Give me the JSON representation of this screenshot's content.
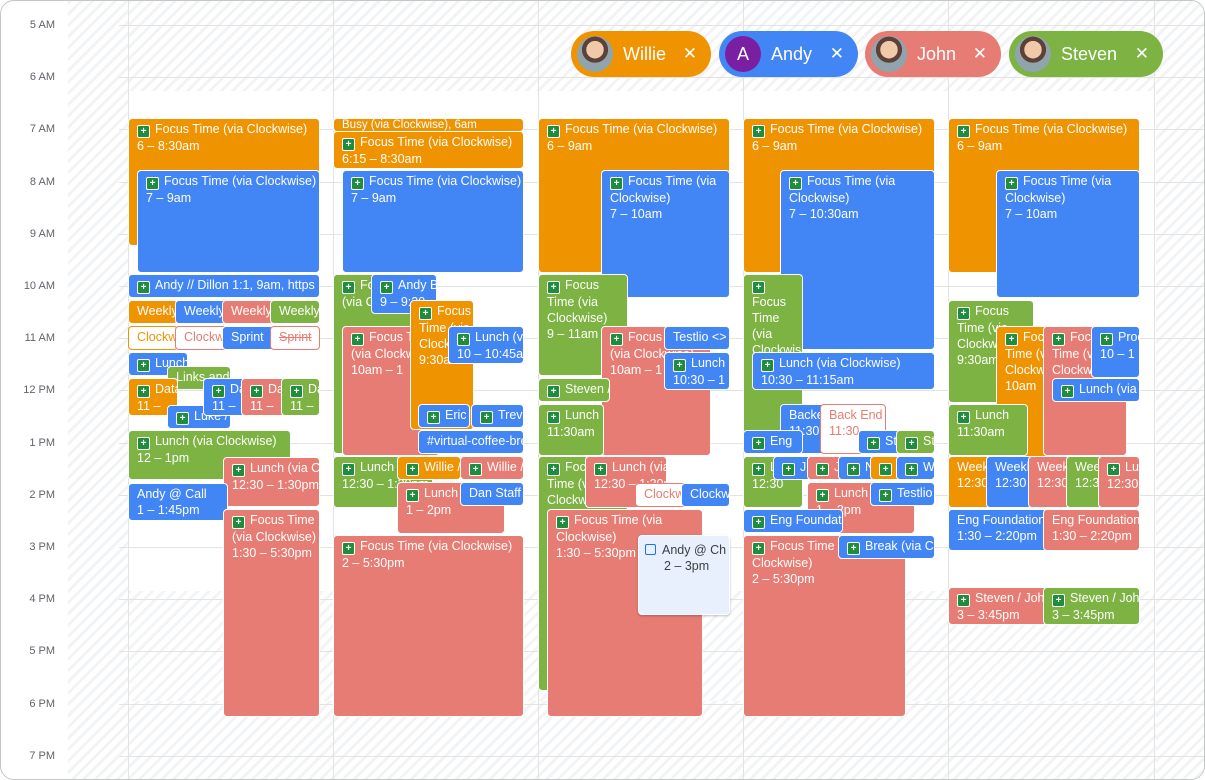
{
  "colors": {
    "orange": "#f09300",
    "blue": "#4285f4",
    "salmon": "#e67c73",
    "green": "#7cb342",
    "tangerine": "#f4511e"
  },
  "time_labels": [
    "5 AM",
    "6 AM",
    "7 AM",
    "8 AM",
    "9 AM",
    "10 AM",
    "11 AM",
    "12 PM",
    "1 PM",
    "2 PM",
    "3 PM",
    "4 PM",
    "5 PM",
    "6 PM",
    "7 PM"
  ],
  "people": [
    {
      "name": "Willie",
      "avatar": "photo",
      "color": "#f09300"
    },
    {
      "name": "Andy",
      "avatar": "A",
      "color": "#4285f4"
    },
    {
      "name": "John",
      "avatar": "photo",
      "color": "#e67c73"
    },
    {
      "name": "Steven",
      "avatar": "photo",
      "color": "#7cb342"
    }
  ],
  "remove_icon": "close-icon",
  "events": {
    "c1": [
      {
        "t": "Focus Time (via Clockwise)",
        "s": "6 – 8:30am",
        "ci": true,
        "c": "orange"
      },
      {
        "t": "Focus Time (via Clockwise)",
        "s": "7 – 9am",
        "ci": true,
        "c": "blue",
        "wrap": true
      },
      {
        "t": "Andy // Dillon 1:1, 9am, https",
        "ci": true,
        "c": "blue"
      },
      {
        "t": "Weekly",
        "c": "orange"
      },
      {
        "t": "Weekly",
        "c": "blue"
      },
      {
        "t": "Weekly",
        "c": "salmon"
      },
      {
        "t": "Weekly",
        "c": "green"
      },
      {
        "t": "Clockwise",
        "c": "orange",
        "outline": true
      },
      {
        "t": "Clockwise",
        "c": "salmon",
        "outline": true
      },
      {
        "t": "Sprint",
        "c": "blue"
      },
      {
        "t": "Sprint",
        "c": "salmon",
        "outline": true,
        "strike": true
      },
      {
        "t": "Lunch",
        "ci": true,
        "c": "blue"
      },
      {
        "t": "Links and",
        "c": "green"
      },
      {
        "t": "Data T",
        "s": "11 –",
        "ci": true,
        "c": "orange"
      },
      {
        "t": "Luke /",
        "ci": true,
        "c": "blue"
      },
      {
        "t": "Da",
        "s": "11 –",
        "ci": true,
        "c": "blue"
      },
      {
        "t": "Da",
        "s": "11 –",
        "ci": true,
        "c": "salmon"
      },
      {
        "t": "Da",
        "s": "11 –",
        "ci": true,
        "c": "green"
      },
      {
        "t": "Lunch (via Clockwise)",
        "s": "12 – 1pm",
        "ci": true,
        "c": "green"
      },
      {
        "t": "Lunch (via Clockwise)",
        "s": "12:30 – 1:30pm",
        "ci": true,
        "c": "salmon"
      },
      {
        "t": "Andy @ Call",
        "s": "1 – 1:45pm",
        "c": "blue"
      },
      {
        "t": "Focus Time (via Clockwise)",
        "s": "1:30 – 5:30pm",
        "ci": true,
        "c": "salmon",
        "wrap": true
      }
    ],
    "c2": [
      {
        "t": "Busy (via Clockwise), 6am",
        "c": "orange"
      },
      {
        "t": "Focus Time (via Clockwise)",
        "s": "6:15 – 8:30am",
        "ci": true,
        "c": "orange"
      },
      {
        "t": "Focus Time (via Clockwise)",
        "s": "7 – 9am",
        "ci": true,
        "c": "blue",
        "wrap": true
      },
      {
        "t": "Focus Time (via Clockwise)",
        "ci": true,
        "c": "green",
        "wrap": true
      },
      {
        "t": "Andy B",
        "s": "9 – 9:30",
        "ci": true,
        "c": "blue"
      },
      {
        "t": "Focus Time (via Clockwise)",
        "s": "10am – 1",
        "ci": true,
        "c": "salmon",
        "wrap": true
      },
      {
        "t": "Focus Time (via Clockwise)",
        "s": "9:30am –",
        "ci": true,
        "c": "orange",
        "wrap": true
      },
      {
        "t": "Lunch (via Clockwise)",
        "s": "10 – 10:45am",
        "ci": true,
        "c": "blue"
      },
      {
        "t": "Eric",
        "ci": true,
        "c": "blue"
      },
      {
        "t": "Trevor",
        "ci": true,
        "c": "blue"
      },
      {
        "t": "#virtual-coffee-break",
        "c": "blue"
      },
      {
        "t": "Lunch (via Clockwise)",
        "s": "12:30 – 1:30pm",
        "ci": true,
        "c": "green"
      },
      {
        "t": "Willie / Dan",
        "ci": true,
        "c": "orange"
      },
      {
        "t": "Willie / Dan",
        "ci": true,
        "c": "salmon"
      },
      {
        "t": "Lunch (via Clockwise)",
        "s": "1 – 2pm",
        "ci": true,
        "c": "salmon"
      },
      {
        "t": "Dan Staff",
        "c": "blue"
      },
      {
        "t": "Focus Time (via Clockwise)",
        "s": "2 – 5:30pm",
        "ci": true,
        "c": "salmon"
      }
    ],
    "c3": [
      {
        "t": "Focus Time (via Clockwise)",
        "s": "6 – 9am",
        "ci": true,
        "c": "orange"
      },
      {
        "t": "Focus Time (via Clockwise)",
        "s": "7 – 10am",
        "ci": true,
        "c": "blue",
        "wrap": true
      },
      {
        "t": "Focus Time (via Clockwise)",
        "s": "9 – 11am",
        "ci": true,
        "c": "green",
        "wrap": true
      },
      {
        "t": "Focus Time (via Clockwise)",
        "s": "10am – 1",
        "ci": true,
        "c": "salmon",
        "wrap": true
      },
      {
        "t": "Testlio <> Clockwise",
        "c": "blue"
      },
      {
        "t": "Lunch (via Clockwise)",
        "s": "10:30 – 1",
        "ci": true,
        "c": "blue"
      },
      {
        "t": "Steven / John",
        "ci": true,
        "c": "green"
      },
      {
        "t": "Lunch (via Clockwise)",
        "s": "11:30am",
        "ci": true,
        "c": "green"
      },
      {
        "t": "Focus Time (via Clockwise)",
        "ci": true,
        "c": "green",
        "wrap": true
      },
      {
        "t": "Lunch (via Clockwise)",
        "s": "12:30 – 1:30pm",
        "ci": true,
        "c": "salmon"
      },
      {
        "t": "Clockwise",
        "c": "salmon",
        "outline": true
      },
      {
        "t": "Clockwise",
        "c": "blue"
      },
      {
        "t": "Focus Time (via Clockwise)",
        "s": "1:30 – 5:30pm",
        "ci": true,
        "c": "salmon",
        "wrap": true
      },
      {
        "t": "Andy @ Ch",
        "s": "2 – 3pm",
        "popup": true
      }
    ],
    "c4": [
      {
        "t": "Focus Time (via Clockwise)",
        "s": "6 – 9am",
        "ci": true,
        "c": "orange"
      },
      {
        "t": "Focus Time (via Clockwise)",
        "s": "7 – 10:30am",
        "ci": true,
        "c": "blue",
        "wrap": true
      },
      {
        "t": "Focus Time (via Clockwise)",
        "ci": true,
        "c": "green",
        "wrap": true
      },
      {
        "t": "Lunch (via Clockwise)",
        "s": "10:30 – 11:15am",
        "ci": true,
        "c": "blue"
      },
      {
        "t": "Backend",
        "s": "11:30",
        "c": "blue"
      },
      {
        "t": "Back End",
        "s": "11:30",
        "c": "salmon",
        "outline": true
      },
      {
        "t": "Eng",
        "ci": true,
        "c": "blue"
      },
      {
        "t": "St",
        "ci": true,
        "c": "blue"
      },
      {
        "t": "St",
        "ci": true,
        "c": "green"
      },
      {
        "t": "L",
        "s": "12:30",
        "ci": true,
        "c": "green"
      },
      {
        "t": "J",
        "ci": true,
        "c": "blue"
      },
      {
        "t": "J",
        "ci": true,
        "c": "salmon"
      },
      {
        "t": "N",
        "ci": true,
        "c": "blue"
      },
      {
        "t": "W",
        "ci": true,
        "c": "orange"
      },
      {
        "t": "W",
        "ci": true,
        "c": "blue"
      },
      {
        "t": "Lunch (via Clockwise)",
        "s": "1 – 2pm",
        "ci": true,
        "c": "salmon"
      },
      {
        "t": "Testlio - Clockwise",
        "ci": true,
        "c": "blue",
        "hatched": true
      },
      {
        "t": "Eng Foundations",
        "ci": true,
        "c": "blue"
      },
      {
        "t": "Focus Time (via Clockwise)",
        "s": "2 – 5:30pm",
        "ci": true,
        "c": "salmon",
        "wrap": true
      },
      {
        "t": "Break (via Clockwise)",
        "ci": true,
        "c": "blue"
      }
    ],
    "c5": [
      {
        "t": "Focus Time (via Clockwise)",
        "s": "6 – 9am",
        "ci": true,
        "c": "orange"
      },
      {
        "t": "Focus Time (via Clockwise)",
        "s": "7 – 10am",
        "ci": true,
        "c": "blue",
        "wrap": true
      },
      {
        "t": "Focus Time (via Clockwise)",
        "s": "9:30am",
        "ci": true,
        "c": "green",
        "wrap": true
      },
      {
        "t": "Focus Time (via Clockwise)",
        "s": "10am",
        "ci": true,
        "c": "orange",
        "wrap": true
      },
      {
        "t": "Focus Time (via Clockwise)",
        "ci": true,
        "c": "salmon",
        "wrap": true
      },
      {
        "t": "Product",
        "s": "10 – 1",
        "ci": true,
        "c": "blue"
      },
      {
        "t": "Lunch (via Clockwise)",
        "ci": true,
        "c": "blue"
      },
      {
        "t": "Lunch",
        "s": "11:30am",
        "ci": true,
        "c": "green"
      },
      {
        "t": "Weekly",
        "s": "12:30",
        "c": "orange"
      },
      {
        "t": "Weekly",
        "s": "12:30",
        "c": "blue"
      },
      {
        "t": "Weekly",
        "s": "12:30",
        "c": "salmon"
      },
      {
        "t": "Weekly",
        "s": "12:30",
        "c": "green"
      },
      {
        "t": "Lunch",
        "s": "12:30",
        "ci": true,
        "c": "salmon"
      },
      {
        "t": "Eng Foundations",
        "s": "1:30 – 2:20pm",
        "c": "blue"
      },
      {
        "t": "Eng Foundations",
        "s": "1:30 – 2:20pm",
        "c": "salmon"
      },
      {
        "t": "Steven / John",
        "s": "3 – 3:45pm",
        "ci": true,
        "c": "salmon"
      },
      {
        "t": "Steven / John",
        "s": "3 – 3:45pm",
        "ci": true,
        "c": "green"
      }
    ]
  }
}
